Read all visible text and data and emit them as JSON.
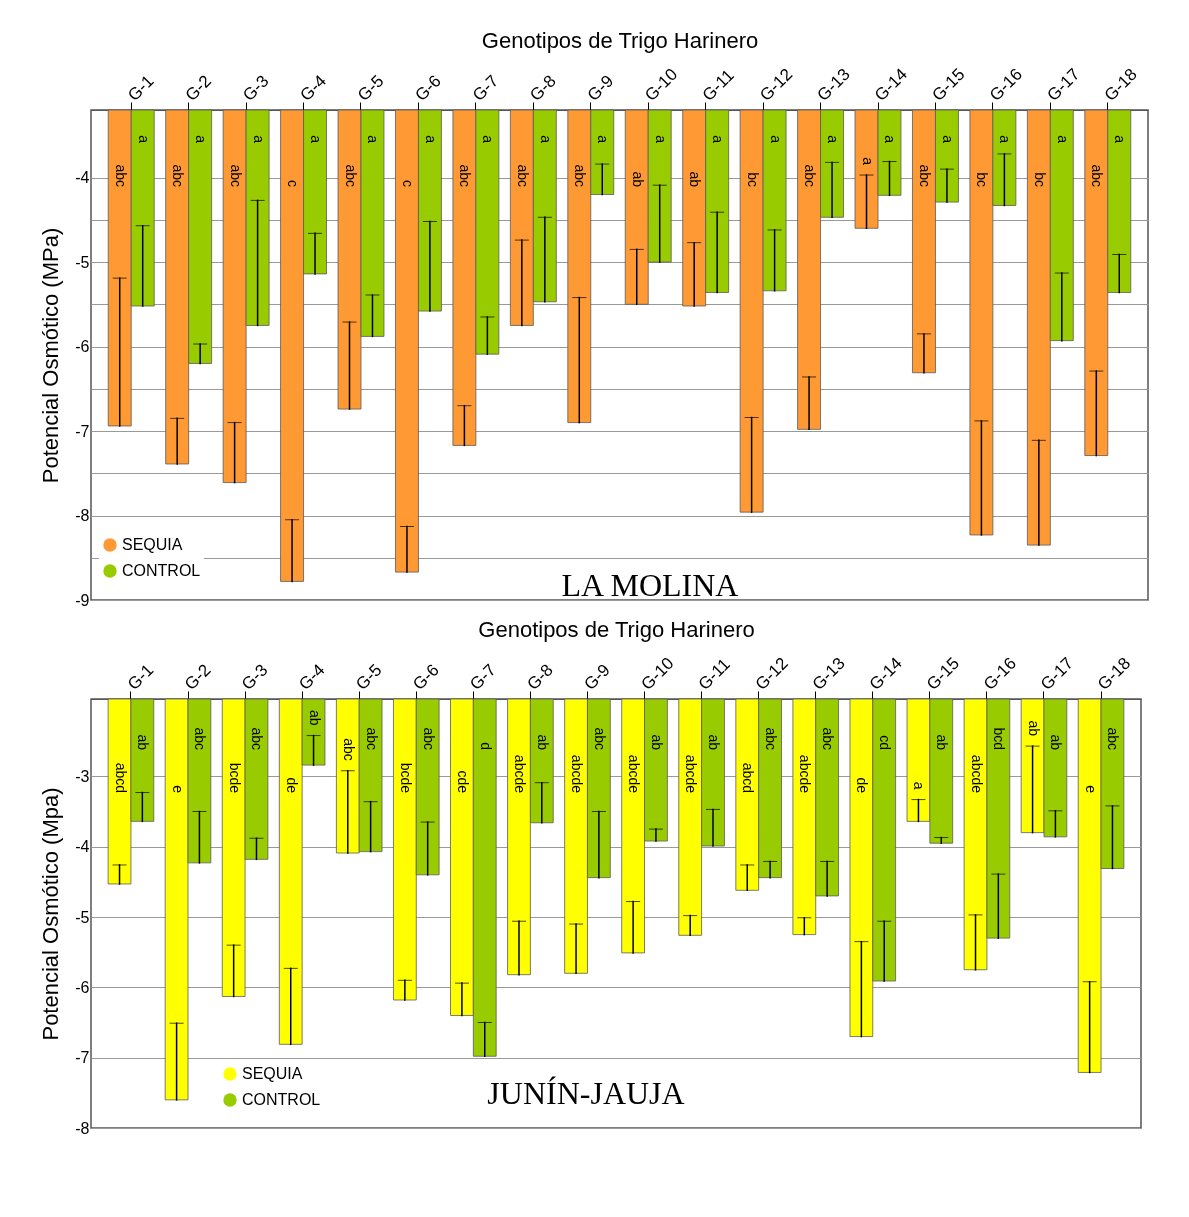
{
  "chart_data": [
    {
      "type": "bar",
      "xlabel": "Genotipos de Trigo Harinero",
      "ylabel": "Potencial Osmótico (MPa)",
      "categories": [
        "G-1",
        "G-2",
        "G-3",
        "G-4",
        "G-5",
        "G-6",
        "G-7",
        "G-8",
        "G-9",
        "G-10",
        "G-11",
        "G-12",
        "G-13",
        "G-14",
        "G-15",
        "G-16",
        "G-17",
        "G-18"
      ],
      "series": [
        {
          "name": "SEQUIA",
          "color": "#ff9933",
          "values": [
            -6.94,
            -7.39,
            -7.61,
            -8.78,
            -6.74,
            -8.67,
            -7.17,
            -5.75,
            -6.9,
            -5.5,
            -5.52,
            -7.96,
            -6.98,
            -4.6,
            -6.31,
            -8.23,
            -8.35,
            -7.29
          ],
          "errors": [
            [
              -6.94,
              -5.19
            ],
            [
              -7.39,
              -6.85
            ],
            [
              -7.61,
              -6.9
            ],
            [
              -8.78,
              -8.05
            ],
            [
              -6.74,
              -5.71
            ],
            [
              -8.67,
              -8.13
            ],
            [
              -7.17,
              -6.7
            ],
            [
              -5.75,
              -4.74
            ],
            [
              -6.9,
              -5.42
            ],
            [
              -5.5,
              -4.85
            ],
            [
              -5.52,
              -4.77
            ],
            [
              -7.96,
              -6.84
            ],
            [
              -6.98,
              -6.36
            ],
            [
              -4.6,
              -3.97
            ],
            [
              -6.31,
              -5.85
            ],
            [
              -8.23,
              -6.88
            ],
            [
              -8.35,
              -7.11
            ],
            [
              -7.29,
              -6.29
            ]
          ],
          "value_labels": [
            "abc",
            "abc",
            "abc",
            "c",
            "abc",
            "c",
            "abc",
            "abc",
            "abc",
            "ab",
            "ab",
            "bc",
            "abc",
            "a",
            "abc",
            "bc",
            "bc",
            "abc"
          ]
        },
        {
          "name": "CONTROL",
          "color": "#99cc00",
          "values": [
            -5.52,
            -6.2,
            -5.75,
            -5.14,
            -5.88,
            -5.58,
            -6.09,
            -5.47,
            -4.2,
            -5.0,
            -5.36,
            -5.34,
            -4.47,
            -4.21,
            -4.29,
            -4.33,
            -5.93,
            -5.36
          ],
          "errors": [
            [
              -5.52,
              -4.57
            ],
            [
              -6.2,
              -5.97
            ],
            [
              -5.75,
              -4.27
            ],
            [
              -5.14,
              -4.66
            ],
            [
              -5.88,
              -5.39
            ],
            [
              -5.58,
              -4.52
            ],
            [
              -6.09,
              -5.65
            ],
            [
              -5.47,
              -4.47
            ],
            [
              -4.2,
              -3.84
            ],
            [
              -5.0,
              -4.09
            ],
            [
              -5.36,
              -4.41
            ],
            [
              -5.34,
              -4.62
            ],
            [
              -4.47,
              -3.82
            ],
            [
              -4.21,
              -3.81
            ],
            [
              -4.29,
              -3.9
            ],
            [
              -4.33,
              -3.72
            ],
            [
              -5.93,
              -5.13
            ],
            [
              -5.36,
              -4.91
            ]
          ],
          "value_labels": [
            "a",
            "a",
            "a",
            "a",
            "a",
            "a",
            "a",
            "a",
            "a",
            "a",
            "a",
            "a",
            "a",
            "a",
            "a",
            "a",
            "a",
            "a"
          ]
        }
      ],
      "ylim": [
        -9,
        -3.2
      ],
      "yticks": [
        -9,
        {
          "value": -8.5,
          "label": null
        },
        -8,
        {
          "value": -7.5,
          "label": null
        },
        -7,
        {
          "value": -6.5,
          "label": null
        },
        -6,
        {
          "value": -5.5,
          "label": null
        },
        -5,
        {
          "value": -4.5,
          "label": null
        },
        -4
      ],
      "grid": "y",
      "legend": "bottom left",
      "annotations": [
        "LA MOLINA"
      ]
    },
    {
      "type": "bar",
      "xlabel": "Genotipos de Trigo Harinero",
      "ylabel": "Potencial Osmótico (Mpa)",
      "categories": [
        "G-1",
        "G-2",
        "G-3",
        "G-4",
        "G-5",
        "G-6",
        "G-7",
        "G-8",
        "G-9",
        "G-10",
        "G-11",
        "G-12",
        "G-13",
        "G-14",
        "G-15",
        "G-16",
        "G-17",
        "G-18"
      ],
      "series": [
        {
          "name": "SEQUIA",
          "color": "#ffff00",
          "values": [
            -4.53,
            -7.6,
            -6.13,
            -6.81,
            -4.09,
            -6.18,
            -6.4,
            -5.82,
            -5.8,
            -5.51,
            -5.26,
            -4.62,
            -5.25,
            -6.7,
            -3.64,
            -5.75,
            -3.8,
            -7.21
          ],
          "errors": [
            [
              -4.53,
              -4.26
            ],
            [
              -7.6,
              -6.51
            ],
            [
              -6.13,
              -5.4
            ],
            [
              -6.81,
              -5.73
            ],
            [
              -4.09,
              -2.92
            ],
            [
              -6.18,
              -5.9
            ],
            [
              -6.4,
              -5.94
            ],
            [
              -5.82,
              -5.06
            ],
            [
              -5.8,
              -5.1
            ],
            [
              -5.51,
              -4.78
            ],
            [
              -5.26,
              -4.98
            ],
            [
              -4.62,
              -4.26
            ],
            [
              -5.25,
              -5.01
            ],
            [
              -6.7,
              -5.35
            ],
            [
              -3.64,
              -3.33
            ],
            [
              -5.75,
              -4.97
            ],
            [
              -3.8,
              -2.57
            ],
            [
              -7.21,
              -5.92
            ]
          ],
          "value_labels": [
            "abcd",
            "e",
            "bcde",
            "de",
            "abc",
            "bcde",
            "cde",
            "abcde",
            "abcde",
            "abcde",
            "abcde",
            "abcd",
            "abcde",
            "de",
            "a",
            "abcde",
            "ab",
            "e"
          ]
        },
        {
          "name": "CONTROL",
          "color": "#99cc00",
          "values": [
            -3.64,
            -4.23,
            -4.18,
            -2.84,
            -4.07,
            -4.4,
            -6.98,
            -3.66,
            -4.44,
            -3.92,
            -3.99,
            -4.44,
            -4.7,
            -5.91,
            -3.95,
            -5.3,
            -3.86,
            -4.31
          ],
          "errors": [
            [
              -3.64,
              -3.23
            ],
            [
              -4.23,
              -3.5
            ],
            [
              -4.18,
              -3.88
            ],
            [
              -2.84,
              -2.42
            ],
            [
              -4.07,
              -3.36
            ],
            [
              -4.4,
              -3.65
            ],
            [
              -6.98,
              -6.5
            ],
            [
              -3.66,
              -3.09
            ],
            [
              -4.44,
              -3.5
            ],
            [
              -3.92,
              -3.75
            ],
            [
              -3.99,
              -3.47
            ],
            [
              -4.44,
              -4.21
            ],
            [
              -4.7,
              -4.21
            ],
            [
              -5.91,
              -5.06
            ],
            [
              -3.95,
              -3.87
            ],
            [
              -5.3,
              -4.39
            ],
            [
              -3.86,
              -3.49
            ],
            [
              -4.31,
              -3.42
            ]
          ],
          "value_labels": [
            "ab",
            "abc",
            "abc",
            "ab",
            "abc",
            "abc",
            "d",
            "ab",
            "abc",
            "ab",
            "ab",
            "abc",
            "abc",
            "cd",
            "ab",
            "bcd",
            "ab",
            "abc"
          ]
        }
      ],
      "ylim": [
        -8,
        -1.9
      ],
      "yticks": [
        -8,
        -7,
        -6,
        -5,
        -4,
        -3
      ],
      "grid": "y",
      "legend": "bottom left",
      "annotations": [
        "JUNÍN-JAUJA"
      ]
    }
  ]
}
